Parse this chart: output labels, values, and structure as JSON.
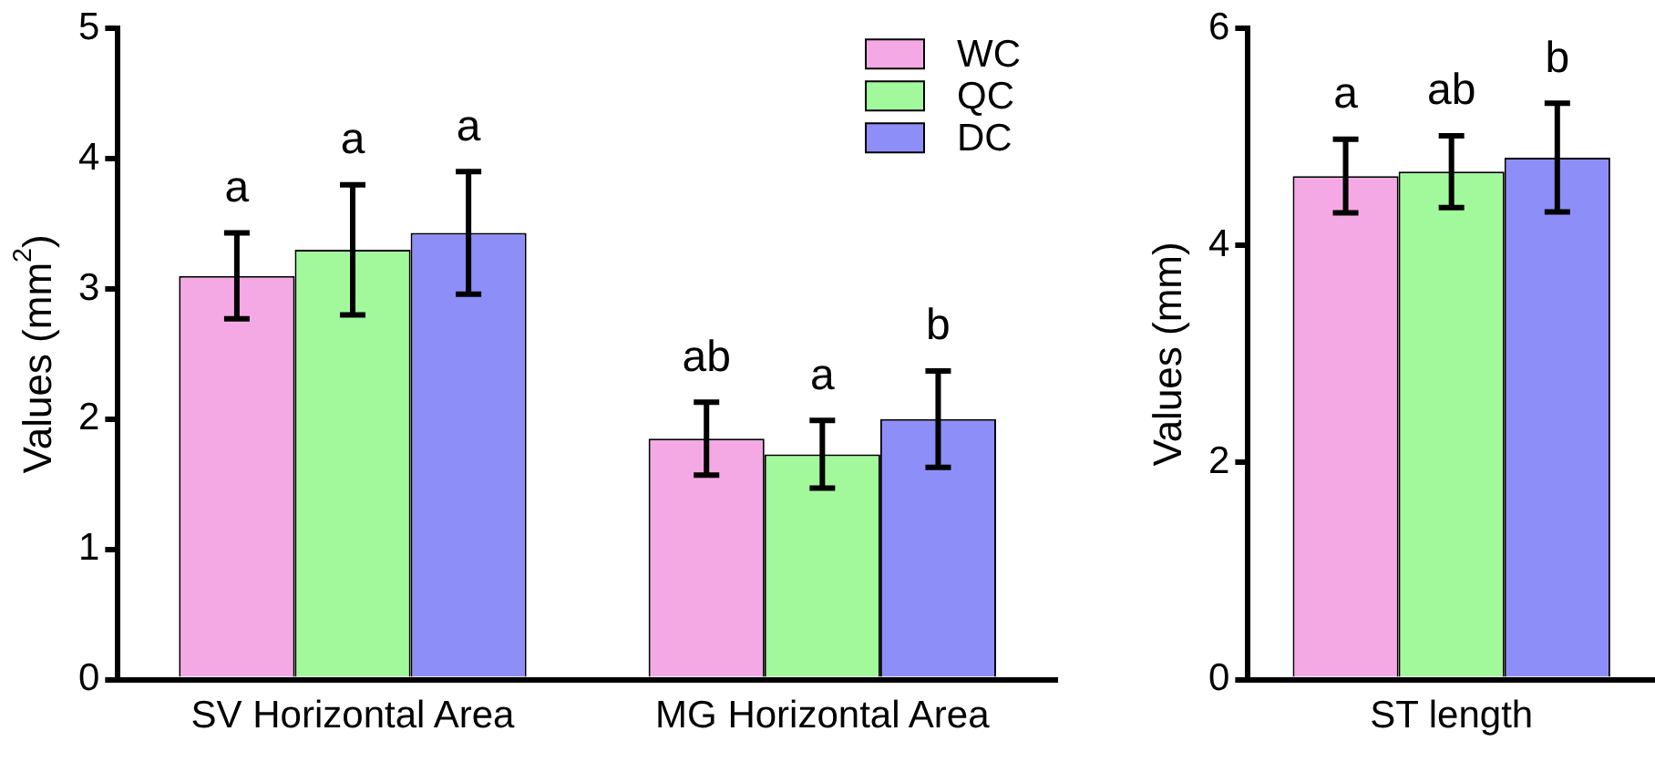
{
  "chart_data": [
    {
      "type": "bar",
      "ylabel": "Values (mm$^{2}$)",
      "categories": [
        "SV Horizontal Area",
        "MG Horizontal Area"
      ],
      "ylim": [
        0,
        5
      ],
      "yticks": [
        0,
        1,
        2,
        3,
        4,
        5
      ],
      "legend": "top right",
      "series": [
        {
          "name": "WC",
          "color": "#f5a9e4",
          "values": [
            3.1,
            1.85
          ],
          "errors": [
            0.33,
            0.28
          ],
          "value_labels": [
            "a",
            "ab"
          ]
        },
        {
          "name": "QC",
          "color": "#a2f99c",
          "values": [
            3.3,
            1.73
          ],
          "errors": [
            0.5,
            0.26
          ],
          "value_labels": [
            "a",
            "a"
          ]
        },
        {
          "name": "DC",
          "color": "#8e8ef9",
          "values": [
            3.43,
            2.0
          ],
          "errors": [
            0.47,
            0.37
          ],
          "value_labels": [
            "a",
            "b"
          ]
        }
      ]
    },
    {
      "type": "bar",
      "ylabel": "Values (mm)",
      "categories": [
        "ST length"
      ],
      "ylim": [
        0,
        6
      ],
      "yticks": [
        0,
        2,
        4,
        6
      ],
      "series": [
        {
          "color": "#f5a9e4",
          "values": [
            4.64
          ],
          "errors": [
            0.34
          ],
          "value_labels": [
            "a"
          ]
        },
        {
          "color": "#a2f99c",
          "values": [
            4.68
          ],
          "errors": [
            0.33
          ],
          "value_labels": [
            "ab"
          ]
        },
        {
          "color": "#8e8ef9",
          "values": [
            4.81
          ],
          "errors": [
            0.5
          ],
          "value_labels": [
            "b"
          ]
        }
      ]
    }
  ]
}
